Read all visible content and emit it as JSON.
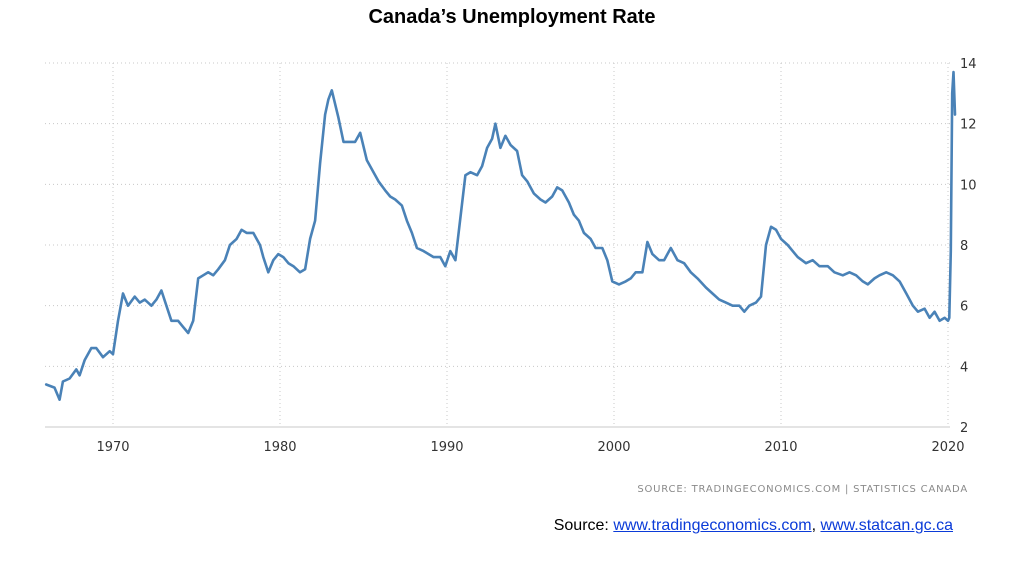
{
  "chart_data": {
    "type": "line",
    "title": "Canada’s Unemployment Rate",
    "xlabel": "",
    "ylabel": "",
    "xlim": [
      1966,
      2020.7
    ],
    "ylim": [
      2,
      14
    ],
    "x_ticks": [
      "1970",
      "1980",
      "1990",
      "2000",
      "2010",
      "2020"
    ],
    "y_ticks": [
      "2",
      "4",
      "6",
      "8",
      "10",
      "12",
      "14"
    ],
    "y_axis_side": "right",
    "grid": true,
    "line_color": "#4a82b7",
    "series": [
      {
        "name": "",
        "points": [
          [
            1966.0,
            3.4
          ],
          [
            1966.5,
            3.3
          ],
          [
            1966.8,
            2.9
          ],
          [
            1967.0,
            3.5
          ],
          [
            1967.4,
            3.6
          ],
          [
            1967.8,
            3.9
          ],
          [
            1968.0,
            3.7
          ],
          [
            1968.3,
            4.2
          ],
          [
            1968.7,
            4.6
          ],
          [
            1969.0,
            4.6
          ],
          [
            1969.4,
            4.3
          ],
          [
            1969.8,
            4.5
          ],
          [
            1970.0,
            4.4
          ],
          [
            1970.3,
            5.5
          ],
          [
            1970.6,
            6.4
          ],
          [
            1970.9,
            6.0
          ],
          [
            1971.3,
            6.3
          ],
          [
            1971.6,
            6.1
          ],
          [
            1971.9,
            6.2
          ],
          [
            1972.3,
            6.0
          ],
          [
            1972.6,
            6.2
          ],
          [
            1972.9,
            6.5
          ],
          [
            1973.2,
            6.0
          ],
          [
            1973.5,
            5.5
          ],
          [
            1973.9,
            5.5
          ],
          [
            1974.2,
            5.3
          ],
          [
            1974.5,
            5.1
          ],
          [
            1974.8,
            5.5
          ],
          [
            1975.1,
            6.9
          ],
          [
            1975.4,
            7.0
          ],
          [
            1975.7,
            7.1
          ],
          [
            1976.0,
            7.0
          ],
          [
            1976.3,
            7.2
          ],
          [
            1976.7,
            7.5
          ],
          [
            1977.0,
            8.0
          ],
          [
            1977.4,
            8.2
          ],
          [
            1977.7,
            8.5
          ],
          [
            1978.0,
            8.4
          ],
          [
            1978.4,
            8.4
          ],
          [
            1978.8,
            8.0
          ],
          [
            1979.0,
            7.6
          ],
          [
            1979.3,
            7.1
          ],
          [
            1979.6,
            7.5
          ],
          [
            1979.9,
            7.7
          ],
          [
            1980.2,
            7.6
          ],
          [
            1980.5,
            7.4
          ],
          [
            1980.8,
            7.3
          ],
          [
            1981.2,
            7.1
          ],
          [
            1981.5,
            7.2
          ],
          [
            1981.8,
            8.2
          ],
          [
            1982.1,
            8.8
          ],
          [
            1982.4,
            10.7
          ],
          [
            1982.7,
            12.3
          ],
          [
            1982.9,
            12.8
          ],
          [
            1983.1,
            13.1
          ],
          [
            1983.5,
            12.2
          ],
          [
            1983.8,
            11.4
          ],
          [
            1984.2,
            11.4
          ],
          [
            1984.5,
            11.4
          ],
          [
            1984.8,
            11.7
          ],
          [
            1985.2,
            10.8
          ],
          [
            1985.6,
            10.4
          ],
          [
            1985.9,
            10.1
          ],
          [
            1986.3,
            9.8
          ],
          [
            1986.6,
            9.6
          ],
          [
            1986.9,
            9.5
          ],
          [
            1987.3,
            9.3
          ],
          [
            1987.6,
            8.8
          ],
          [
            1987.9,
            8.4
          ],
          [
            1988.2,
            7.9
          ],
          [
            1988.6,
            7.8
          ],
          [
            1988.9,
            7.7
          ],
          [
            1989.2,
            7.6
          ],
          [
            1989.6,
            7.6
          ],
          [
            1989.9,
            7.3
          ],
          [
            1990.2,
            7.8
          ],
          [
            1990.5,
            7.5
          ],
          [
            1990.8,
            8.9
          ],
          [
            1991.1,
            10.3
          ],
          [
            1991.4,
            10.4
          ],
          [
            1991.8,
            10.3
          ],
          [
            1992.1,
            10.6
          ],
          [
            1992.4,
            11.2
          ],
          [
            1992.7,
            11.5
          ],
          [
            1992.9,
            12.0
          ],
          [
            1993.2,
            11.2
          ],
          [
            1993.5,
            11.6
          ],
          [
            1993.8,
            11.3
          ],
          [
            1994.2,
            11.1
          ],
          [
            1994.5,
            10.3
          ],
          [
            1994.8,
            10.1
          ],
          [
            1995.2,
            9.7
          ],
          [
            1995.6,
            9.5
          ],
          [
            1995.9,
            9.4
          ],
          [
            1996.3,
            9.6
          ],
          [
            1996.6,
            9.9
          ],
          [
            1996.9,
            9.8
          ],
          [
            1997.3,
            9.4
          ],
          [
            1997.6,
            9.0
          ],
          [
            1997.9,
            8.8
          ],
          [
            1998.2,
            8.4
          ],
          [
            1998.6,
            8.2
          ],
          [
            1998.9,
            7.9
          ],
          [
            1999.3,
            7.9
          ],
          [
            1999.6,
            7.5
          ],
          [
            1999.9,
            6.8
          ],
          [
            2000.3,
            6.7
          ],
          [
            2000.7,
            6.8
          ],
          [
            2001.0,
            6.9
          ],
          [
            2001.3,
            7.1
          ],
          [
            2001.7,
            7.1
          ],
          [
            2002.0,
            8.1
          ],
          [
            2002.3,
            7.7
          ],
          [
            2002.7,
            7.5
          ],
          [
            2003.0,
            7.5
          ],
          [
            2003.4,
            7.9
          ],
          [
            2003.8,
            7.5
          ],
          [
            2004.2,
            7.4
          ],
          [
            2004.6,
            7.1
          ],
          [
            2005.0,
            6.9
          ],
          [
            2005.5,
            6.6
          ],
          [
            2005.9,
            6.4
          ],
          [
            2006.3,
            6.2
          ],
          [
            2006.7,
            6.1
          ],
          [
            2007.1,
            6.0
          ],
          [
            2007.5,
            6.0
          ],
          [
            2007.8,
            5.8
          ],
          [
            2008.1,
            6.0
          ],
          [
            2008.5,
            6.1
          ],
          [
            2008.8,
            6.3
          ],
          [
            2009.1,
            8.0
          ],
          [
            2009.4,
            8.6
          ],
          [
            2009.7,
            8.5
          ],
          [
            2010.0,
            8.2
          ],
          [
            2010.4,
            8.0
          ],
          [
            2010.7,
            7.8
          ],
          [
            2011.0,
            7.6
          ],
          [
            2011.5,
            7.4
          ],
          [
            2011.9,
            7.5
          ],
          [
            2012.3,
            7.3
          ],
          [
            2012.8,
            7.3
          ],
          [
            2013.2,
            7.1
          ],
          [
            2013.7,
            7.0
          ],
          [
            2014.1,
            7.1
          ],
          [
            2014.5,
            7.0
          ],
          [
            2014.9,
            6.8
          ],
          [
            2015.2,
            6.7
          ],
          [
            2015.6,
            6.9
          ],
          [
            2015.9,
            7.0
          ],
          [
            2016.3,
            7.1
          ],
          [
            2016.7,
            7.0
          ],
          [
            2017.1,
            6.8
          ],
          [
            2017.5,
            6.4
          ],
          [
            2017.9,
            6.0
          ],
          [
            2018.2,
            5.8
          ],
          [
            2018.6,
            5.9
          ],
          [
            2018.9,
            5.6
          ],
          [
            2019.2,
            5.8
          ],
          [
            2019.5,
            5.5
          ],
          [
            2019.8,
            5.6
          ],
          [
            2020.0,
            5.5
          ],
          [
            2020.08,
            5.6
          ],
          [
            2020.17,
            7.8
          ],
          [
            2020.25,
            13.0
          ],
          [
            2020.33,
            13.7
          ],
          [
            2020.42,
            12.3
          ]
        ]
      }
    ]
  },
  "source_note": "SOURCE:  TRADINGECONOMICS.COM  |  STATISTICS CANADA",
  "source_line": {
    "prefix": "Source: ",
    "link1": "www.tradingeconomics.com",
    "separator": ", ",
    "link2": "www.statcan.gc.ca"
  }
}
